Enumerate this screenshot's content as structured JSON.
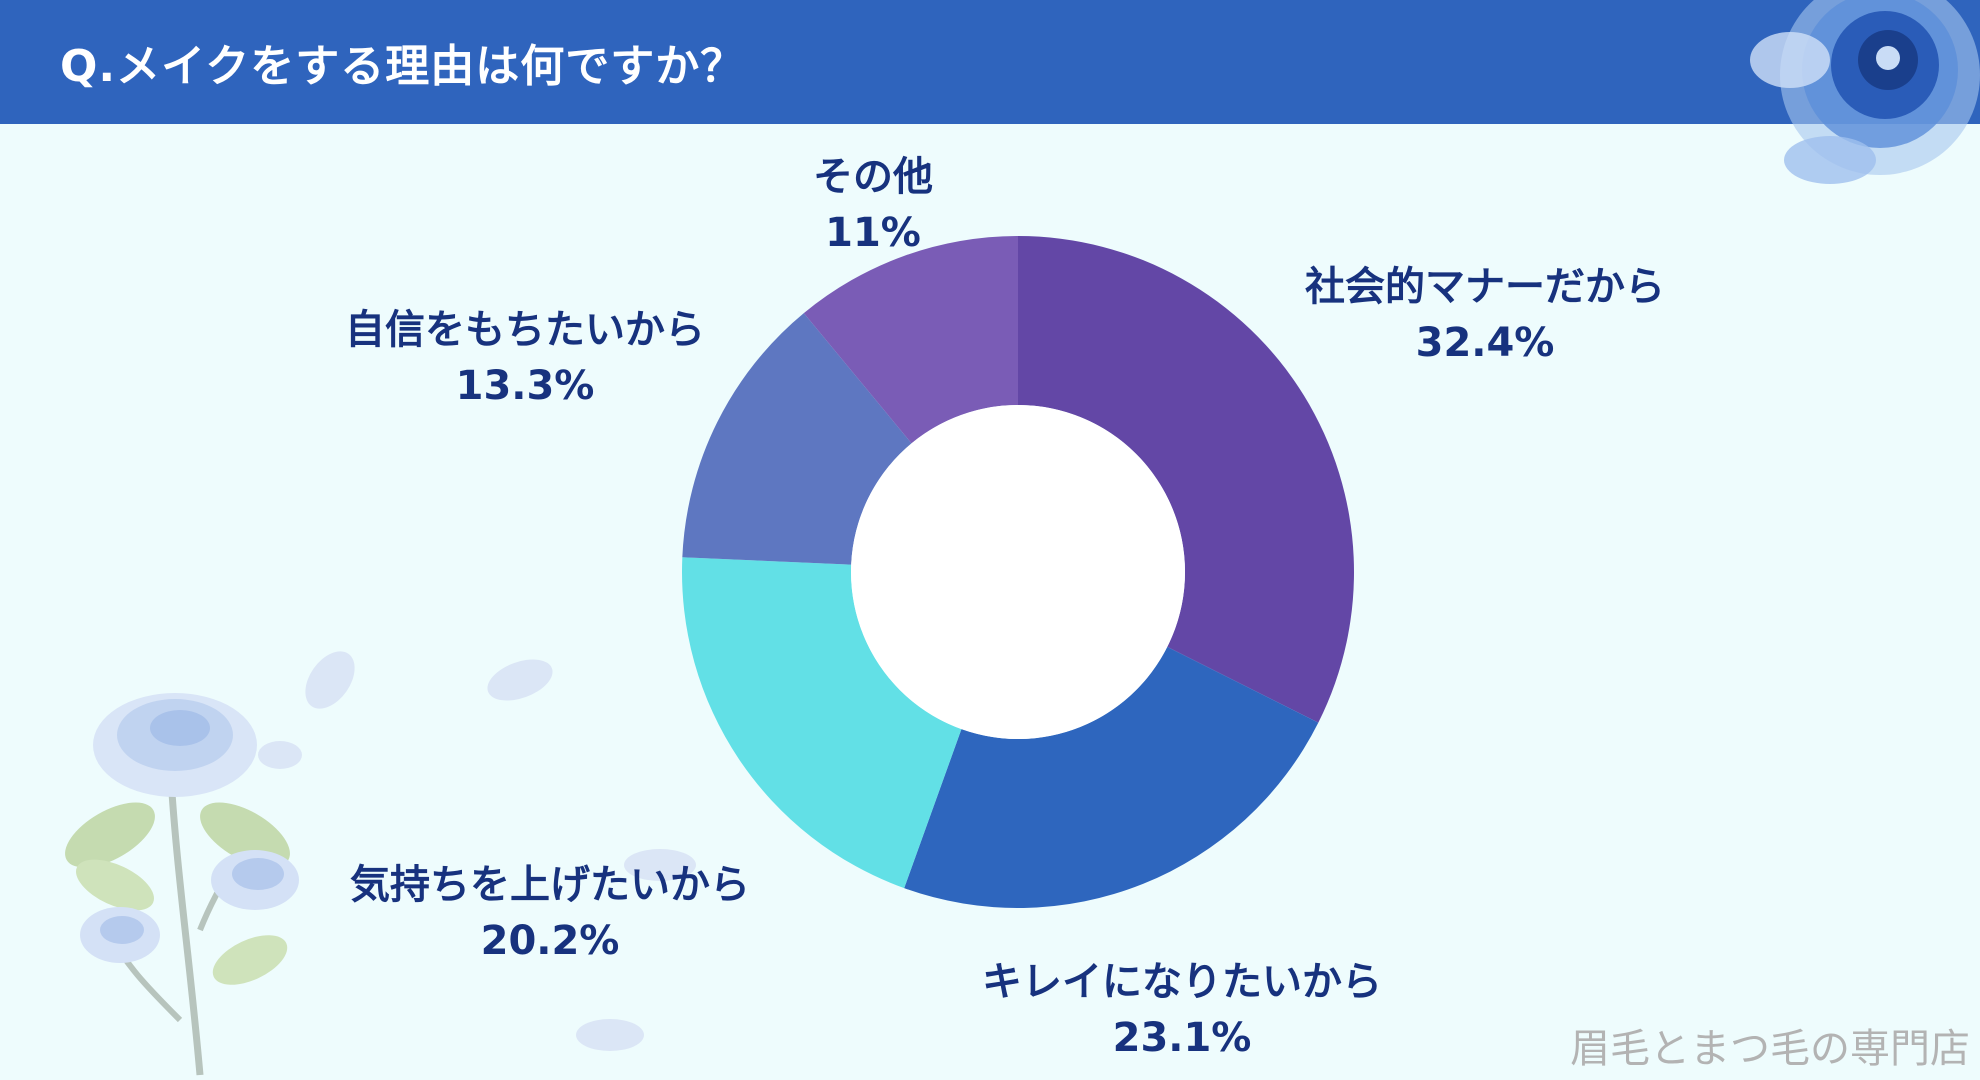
{
  "header": {
    "title": "Q.メイクをする理由は何ですか？"
  },
  "watermark": "眉毛とまつ毛の専門店",
  "colors": {
    "background": "#eefcfd",
    "header": "#2f64bd",
    "label_text": "#17327e"
  },
  "chart_data": {
    "type": "pie",
    "donut": true,
    "start_angle_deg": 0,
    "direction": "clockwise",
    "series": [
      {
        "label": "社会的マナーだから",
        "value_text": "32.4%",
        "value": 32.4,
        "color": "#6347a6"
      },
      {
        "label": "キレイになりたいから",
        "value_text": "23.1%",
        "value": 23.1,
        "color": "#2e66be"
      },
      {
        "label": "気持ちを上げたいから",
        "value_text": "20.2%",
        "value": 20.2,
        "color": "#62e0e6"
      },
      {
        "label": "自信をもちたいから",
        "value_text": "13.3%",
        "value": 13.3,
        "color": "#5e77c1"
      },
      {
        "label": "その他",
        "value_text": "11%",
        "value": 11,
        "color": "#7a5cb6"
      }
    ]
  }
}
